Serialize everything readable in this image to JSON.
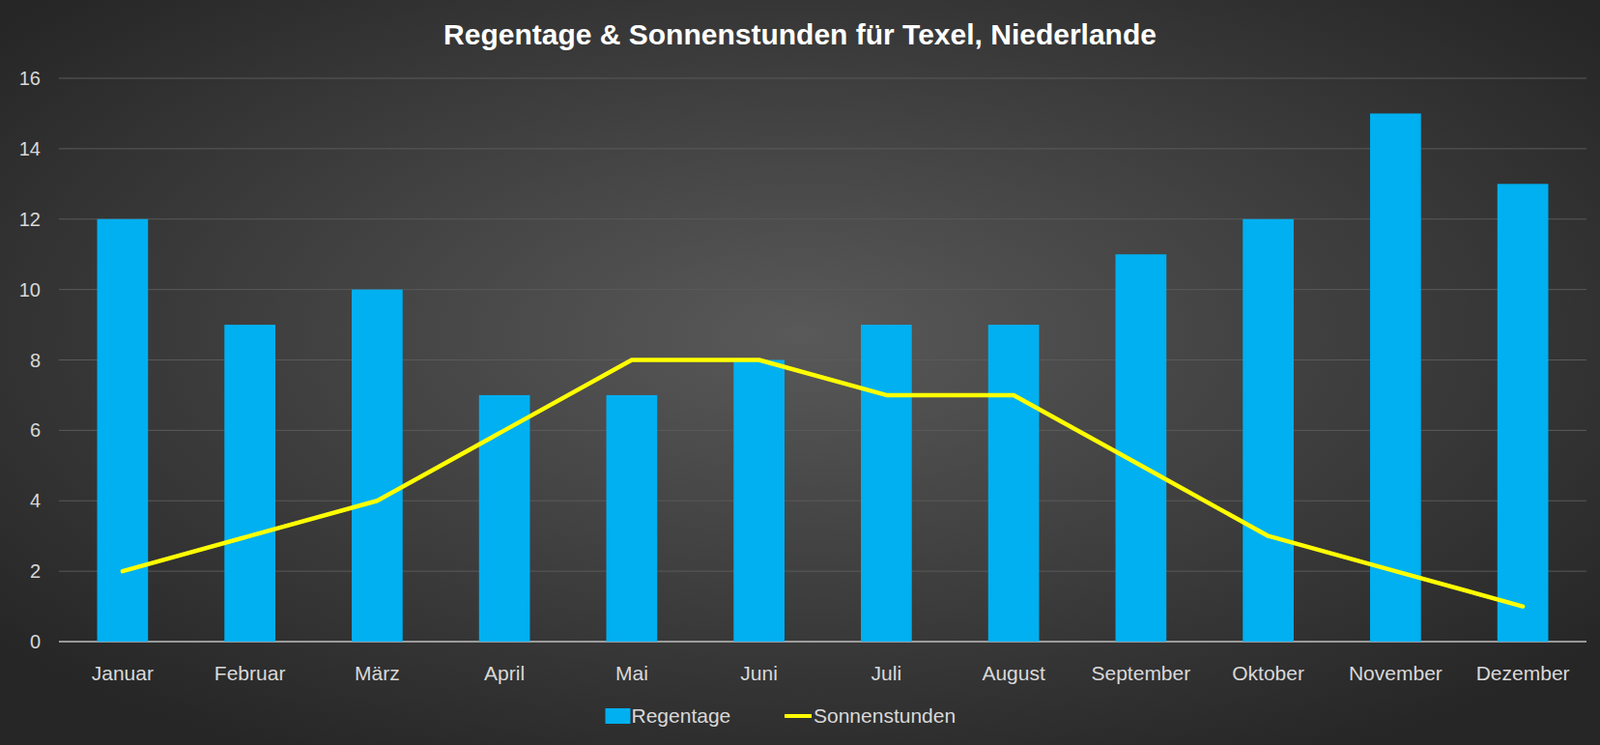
{
  "chart_data": {
    "type": "bar",
    "title": "Regentage & Sonnenstunden für Texel, Niederlande",
    "categories": [
      "Januar",
      "Februar",
      "März",
      "April",
      "Mai",
      "Juni",
      "Juli",
      "August",
      "September",
      "Oktober",
      "November",
      "Dezember"
    ],
    "series": [
      {
        "name": "Regentage",
        "type": "bar",
        "color": "#00b0f0",
        "values": [
          12,
          9,
          10,
          7,
          7,
          8,
          9,
          9,
          11,
          12,
          15,
          13
        ]
      },
      {
        "name": "Sonnenstunden",
        "type": "line",
        "color": "#ffff00",
        "values": [
          2,
          3,
          4,
          6,
          8,
          8,
          7,
          7,
          5,
          3,
          2,
          1
        ]
      }
    ],
    "ylim": [
      0,
      16
    ],
    "yticks": [
      0,
      2,
      4,
      6,
      8,
      10,
      12,
      14,
      16
    ],
    "grid": true,
    "legend": "bottom"
  }
}
